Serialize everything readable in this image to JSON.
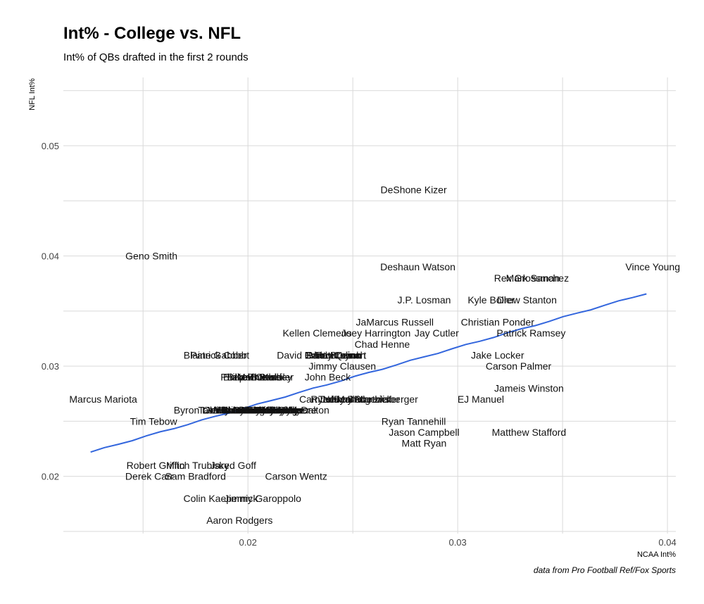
{
  "chart_data": {
    "type": "scatter",
    "title": "Int% - College vs. NFL",
    "subtitle": "Int% of QBs drafted in the first 2 rounds",
    "xlabel": "NCAA Int%",
    "ylabel": "NFL Int%",
    "caption": "data from Pro Football Ref/Fox Sports",
    "xlim": [
      0.0112,
      0.0404
    ],
    "ylim": [
      0.0148,
      0.0562
    ],
    "xticks": [
      0.02,
      0.03,
      0.04
    ],
    "xtick_labels": [
      "0.02",
      "0.03",
      "0.04"
    ],
    "yticks": [
      0.02,
      0.03,
      0.04,
      0.05
    ],
    "ytick_labels": [
      "0.02",
      "0.03",
      "0.04",
      "0.05"
    ],
    "grid": true,
    "trend_line": {
      "x": [
        0.0125,
        0.039
      ],
      "y": [
        0.0222,
        0.0366
      ]
    },
    "points": [
      {
        "name": "DeShone Kizer",
        "x": 0.0279,
        "y": 0.046
      },
      {
        "name": "Geno Smith",
        "x": 0.0154,
        "y": 0.04
      },
      {
        "name": "Deshaun Watson",
        "x": 0.0281,
        "y": 0.039
      },
      {
        "name": "Vince Young",
        "x": 0.0393,
        "y": 0.039
      },
      {
        "name": "Rex Grossman",
        "x": 0.0333,
        "y": 0.038
      },
      {
        "name": "Mark Sanchez",
        "x": 0.0338,
        "y": 0.038
      },
      {
        "name": "J.P. Losman",
        "x": 0.0284,
        "y": 0.036
      },
      {
        "name": "Kyle Boller",
        "x": 0.0316,
        "y": 0.036
      },
      {
        "name": "Drew Stanton",
        "x": 0.0333,
        "y": 0.036
      },
      {
        "name": "JaMarcus Russell",
        "x": 0.027,
        "y": 0.034
      },
      {
        "name": "Christian Ponder",
        "x": 0.0319,
        "y": 0.034
      },
      {
        "name": "Kellen Clemens",
        "x": 0.0233,
        "y": 0.033
      },
      {
        "name": "Joey Harrington",
        "x": 0.0261,
        "y": 0.033
      },
      {
        "name": "Jay Cutler",
        "x": 0.029,
        "y": 0.033
      },
      {
        "name": "Patrick Ramsey",
        "x": 0.0335,
        "y": 0.033
      },
      {
        "name": "Chad Henne",
        "x": 0.0264,
        "y": 0.032
      },
      {
        "name": "Brian Brohm",
        "x": 0.024,
        "y": 0.031
      },
      {
        "name": "Brady Quinn",
        "x": 0.0241,
        "y": 0.031
      },
      {
        "name": "Paxton Lynch",
        "x": 0.0242,
        "y": 0.031
      },
      {
        "name": "Matt Leinart",
        "x": 0.0244,
        "y": 0.031
      },
      {
        "name": "Tim Couch",
        "x": 0.0243,
        "y": 0.031
      },
      {
        "name": "Blaine Gabbert",
        "x": 0.0185,
        "y": 0.031
      },
      {
        "name": "Patrick Cobb",
        "x": 0.0186,
        "y": 0.031
      },
      {
        "name": "David Carr",
        "x": 0.0225,
        "y": 0.031
      },
      {
        "name": "Jake Locker",
        "x": 0.0319,
        "y": 0.031
      },
      {
        "name": "Jimmy Clausen",
        "x": 0.0245,
        "y": 0.03
      },
      {
        "name": "Carson Palmer",
        "x": 0.0329,
        "y": 0.03
      },
      {
        "name": "Philip Rivers",
        "x": 0.02,
        "y": 0.029
      },
      {
        "name": "Blake Bortles",
        "x": 0.0202,
        "y": 0.029
      },
      {
        "name": "Kevin Kolb",
        "x": 0.0205,
        "y": 0.029
      },
      {
        "name": "Brock Osweiler",
        "x": 0.0206,
        "y": 0.029
      },
      {
        "name": "Matt Barkley",
        "x": 0.0208,
        "y": 0.029
      },
      {
        "name": "John Beck",
        "x": 0.0238,
        "y": 0.029
      },
      {
        "name": "Jameis Winston",
        "x": 0.0334,
        "y": 0.028
      },
      {
        "name": "Marcus Mariota",
        "x": 0.0131,
        "y": 0.027
      },
      {
        "name": "Cam Newton",
        "x": 0.0238,
        "y": 0.027
      },
      {
        "name": "Ryan Mallett",
        "x": 0.0243,
        "y": 0.027
      },
      {
        "name": "Johnny Manziel",
        "x": 0.0251,
        "y": 0.027
      },
      {
        "name": "Teddy Bridgewater",
        "x": 0.0253,
        "y": 0.027
      },
      {
        "name": "Ben Roethlisberger",
        "x": 0.0261,
        "y": 0.027
      },
      {
        "name": "EJ Manuel",
        "x": 0.0311,
        "y": 0.027
      },
      {
        "name": "Byron Leftwich",
        "x": 0.018,
        "y": 0.026
      },
      {
        "name": "Tavaris Jackson",
        "x": 0.0193,
        "y": 0.026
      },
      {
        "name": "Vince Young",
        "x": 0.0195,
        "y": 0.026
      },
      {
        "name": "Jared Lorenzen",
        "x": 0.0196,
        "y": 0.026
      },
      {
        "name": "Mike Glennon",
        "x": 0.0198,
        "y": 0.026
      },
      {
        "name": "Ryan Lindley",
        "x": 0.0199,
        "y": 0.026
      },
      {
        "name": "Christian Hackenberg",
        "x": 0.0201,
        "y": 0.026
      },
      {
        "name": "Jordan Palmer",
        "x": 0.0203,
        "y": 0.026
      },
      {
        "name": "Colt McCoy",
        "x": 0.0205,
        "y": 0.026
      },
      {
        "name": "Brandon Weeden",
        "x": 0.0206,
        "y": 0.026
      },
      {
        "name": "Ryan Tannehill",
        "x": 0.0208,
        "y": 0.026
      },
      {
        "name": "Robert Griffin",
        "x": 0.0201,
        "y": 0.026
      },
      {
        "name": "Mitch Trubisky",
        "x": 0.0203,
        "y": 0.026
      },
      {
        "name": "Cody Kessler",
        "x": 0.0209,
        "y": 0.026
      },
      {
        "name": "Alex Smith",
        "x": 0.0211,
        "y": 0.026
      },
      {
        "name": "Mark Sanchez",
        "x": 0.0212,
        "y": 0.026
      },
      {
        "name": "Joe Flacco",
        "x": 0.0214,
        "y": 0.026
      },
      {
        "name": "Matt Ryan",
        "x": 0.0215,
        "y": 0.026
      },
      {
        "name": "Jay Cutler",
        "x": 0.0216,
        "y": 0.026
      },
      {
        "name": "Brian Hoyer",
        "x": 0.0217,
        "y": 0.026
      },
      {
        "name": "Kellen Moore",
        "x": 0.0219,
        "y": 0.026
      },
      {
        "name": "Andy Dalton",
        "x": 0.0226,
        "y": 0.026
      },
      {
        "name": "Tim Tebow",
        "x": 0.0155,
        "y": 0.025
      },
      {
        "name": "Ryan Tannehill",
        "x": 0.0279,
        "y": 0.025
      },
      {
        "name": "Jason Campbell",
        "x": 0.0284,
        "y": 0.024
      },
      {
        "name": "Matthew Stafford",
        "x": 0.0334,
        "y": 0.024
      },
      {
        "name": "Matt Ryan",
        "x": 0.0284,
        "y": 0.023
      },
      {
        "name": "Robert Griffin",
        "x": 0.0156,
        "y": 0.021
      },
      {
        "name": "Mitch Trubisky",
        "x": 0.0176,
        "y": 0.021
      },
      {
        "name": "Jared Goff",
        "x": 0.0193,
        "y": 0.021
      },
      {
        "name": "Derek Carr",
        "x": 0.0153,
        "y": 0.02
      },
      {
        "name": "Sam Bradford",
        "x": 0.0175,
        "y": 0.02
      },
      {
        "name": "Carson Wentz",
        "x": 0.0223,
        "y": 0.02
      },
      {
        "name": "Colin Kaepernick",
        "x": 0.0187,
        "y": 0.018
      },
      {
        "name": "Jimmy Garoppolo",
        "x": 0.0207,
        "y": 0.018
      },
      {
        "name": "Aaron Rodgers",
        "x": 0.0196,
        "y": 0.016
      }
    ]
  }
}
